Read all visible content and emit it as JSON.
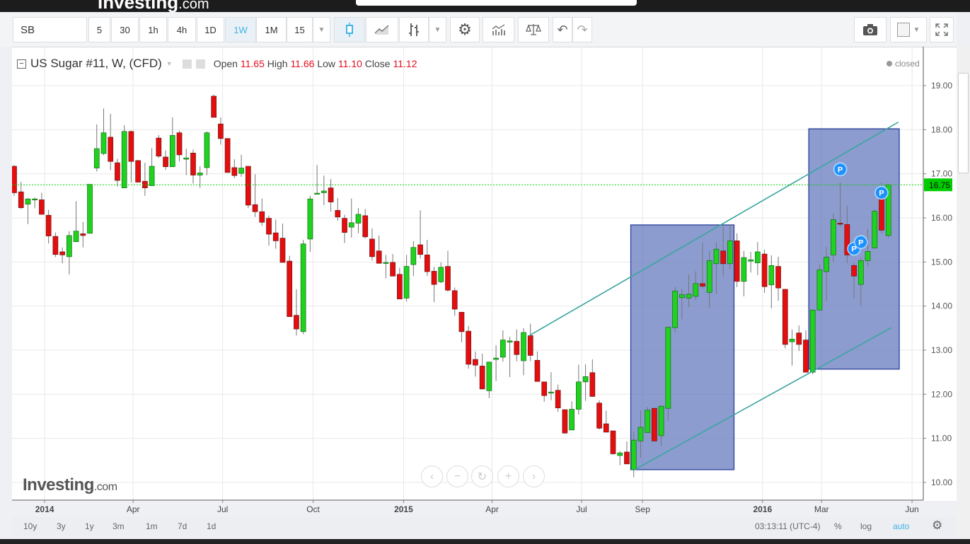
{
  "site": {
    "logo": "Investing",
    "logo_suffix": ".com"
  },
  "toolbar": {
    "symbol": "SB",
    "intervals": [
      "5",
      "30",
      "1h",
      "4h",
      "1D",
      "1W",
      "1M",
      "15"
    ],
    "active_interval": "1W",
    "icons": [
      "chevron-down-icon",
      "candlestick-icon",
      "line-chart-icon",
      "bar-chart-icon",
      "chevron-down-icon",
      "gear-icon",
      "indicators-icon",
      "compare-scale-icon",
      "undo-icon",
      "redo-icon",
      "camera-icon",
      "color-square-icon",
      "fullscreen-icon"
    ]
  },
  "legend": {
    "title": "US Sugar #11, W, (CFD)",
    "open_label": "Open",
    "open": "11.65",
    "high_label": "High",
    "high": "11.66",
    "low_label": "Low",
    "low": "11.10",
    "close_label": "Close",
    "close": "11.12",
    "status": "closed"
  },
  "watermark": {
    "brand": "Investing",
    "suffix": ".com"
  },
  "nav_buttons": [
    "‹",
    "−",
    "↻",
    "+",
    "›"
  ],
  "bottom_bar": {
    "ranges": [
      "10y",
      "3y",
      "1y",
      "3m",
      "1m",
      "7d",
      "1d"
    ],
    "time": "03:13:11 (UTC-4)",
    "percent": "%",
    "log": "log",
    "auto": "auto"
  },
  "colors": {
    "up": "#1ed21e",
    "down": "#e50d0d",
    "accent": "#3fb5e6",
    "price_line": "#00cc00",
    "box_fill": "#6c80c2",
    "trend_line": "#3aa5a0",
    "marker": "#1e90ff"
  },
  "chart_data": {
    "type": "candlestick",
    "title": "US Sugar #11, W, (CFD)",
    "interval": "weekly",
    "columns": [
      "date",
      "open",
      "high",
      "low",
      "close"
    ],
    "ylim": [
      9.8,
      19.7
    ],
    "y_ticks": [
      "10.00",
      "11.00",
      "12.00",
      "13.00",
      "14.00",
      "15.00",
      "16.00",
      "17.00",
      "18.00",
      "19.00"
    ],
    "x_ticks": [
      {
        "label": "2014",
        "date": "2014-01-01"
      },
      {
        "label": "Apr",
        "date": "2014-04-01"
      },
      {
        "label": "Jul",
        "date": "2014-07-01"
      },
      {
        "label": "Oct",
        "date": "2014-10-01"
      },
      {
        "label": "2015",
        "date": "2015-01-01"
      },
      {
        "label": "Apr",
        "date": "2015-04-01"
      },
      {
        "label": "Jul",
        "date": "2015-07-01"
      },
      {
        "label": "Sep",
        "date": "2015-09-01"
      },
      {
        "label": "2016",
        "date": "2016-01-01"
      },
      {
        "label": "Mar",
        "date": "2016-03-01"
      },
      {
        "label": "Jun",
        "date": "2016-06-01"
      }
    ],
    "grid": true,
    "last_price": "16.75",
    "candles": [
      [
        "2013-12-01",
        17.17,
        17.2,
        16.5,
        16.57
      ],
      [
        "2013-12-08",
        16.59,
        16.82,
        16.2,
        16.23
      ],
      [
        "2013-12-15",
        16.31,
        16.45,
        15.86,
        16.43
      ],
      [
        "2013-12-22",
        16.43,
        16.46,
        16.22,
        16.43
      ],
      [
        "2013-12-29",
        16.41,
        16.57,
        16.08,
        16.08
      ],
      [
        "2014-01-05",
        16.06,
        16.18,
        15.42,
        15.59
      ],
      [
        "2014-01-12",
        15.58,
        15.67,
        15.11,
        15.17
      ],
      [
        "2014-01-19",
        15.23,
        15.33,
        14.97,
        15.16
      ],
      [
        "2014-01-26",
        15.12,
        15.7,
        14.72,
        15.6
      ],
      [
        "2014-02-02",
        15.46,
        16.38,
        15.46,
        15.7
      ],
      [
        "2014-02-09",
        15.64,
        15.91,
        15.33,
        15.6
      ],
      [
        "2014-02-16",
        15.65,
        16.76,
        15.65,
        16.76
      ],
      [
        "2014-02-23",
        17.13,
        18.12,
        17.05,
        17.57
      ],
      [
        "2014-03-02",
        17.46,
        18.48,
        17.42,
        17.93
      ],
      [
        "2014-03-09",
        17.83,
        18.36,
        17.08,
        17.28
      ],
      [
        "2014-03-16",
        17.25,
        17.34,
        16.71,
        16.85
      ],
      [
        "2014-03-23",
        16.68,
        18.1,
        16.68,
        17.96
      ],
      [
        "2014-03-30",
        17.96,
        17.98,
        16.8,
        17.28
      ],
      [
        "2014-04-06",
        17.3,
        17.31,
        16.81,
        16.81
      ],
      [
        "2014-04-13",
        16.83,
        17.25,
        16.5,
        16.68
      ],
      [
        "2014-04-20",
        16.73,
        17.58,
        16.73,
        17.17
      ],
      [
        "2014-04-27",
        17.81,
        17.88,
        17.36,
        17.4
      ],
      [
        "2014-05-04",
        17.38,
        17.53,
        17.09,
        17.16
      ],
      [
        "2014-05-11",
        17.16,
        18.28,
        17.16,
        17.87
      ],
      [
        "2014-05-18",
        17.93,
        17.98,
        17.28,
        17.43
      ],
      [
        "2014-05-25",
        17.33,
        17.57,
        16.97,
        17.36
      ],
      [
        "2014-06-01",
        17.47,
        17.55,
        16.78,
        16.97
      ],
      [
        "2014-06-08",
        16.97,
        17.17,
        16.68,
        17.02
      ],
      [
        "2014-06-15",
        17.14,
        17.96,
        16.97,
        17.93
      ],
      [
        "2014-06-22",
        18.76,
        18.8,
        18.28,
        18.28
      ],
      [
        "2014-06-29",
        18.13,
        18.28,
        17.66,
        17.8
      ],
      [
        "2014-07-06",
        17.8,
        17.8,
        17.03,
        17.03
      ],
      [
        "2014-07-13",
        17.14,
        17.33,
        16.9,
        16.96
      ],
      [
        "2014-07-20",
        17.01,
        17.43,
        16.93,
        17.13
      ],
      [
        "2014-07-27",
        17.17,
        17.17,
        16.22,
        16.29
      ],
      [
        "2014-08-03",
        16.3,
        16.99,
        16.02,
        16.14
      ],
      [
        "2014-08-10",
        16.14,
        16.44,
        15.82,
        15.9
      ],
      [
        "2014-08-17",
        15.99,
        16.05,
        15.37,
        15.63
      ],
      [
        "2014-08-24",
        15.66,
        15.96,
        15.3,
        15.48
      ],
      [
        "2014-08-31",
        15.54,
        15.87,
        14.99,
        14.99
      ],
      [
        "2014-09-07",
        15.02,
        15.14,
        13.76,
        13.76
      ],
      [
        "2014-09-14",
        13.79,
        14.38,
        13.33,
        13.48
      ],
      [
        "2014-09-21",
        13.42,
        15.5,
        13.36,
        15.41
      ],
      [
        "2014-09-28",
        15.52,
        16.5,
        15.23,
        16.43
      ],
      [
        "2014-10-05",
        16.55,
        17.2,
        16.53,
        16.56
      ],
      [
        "2014-10-12",
        16.57,
        16.96,
        16.29,
        16.61
      ],
      [
        "2014-10-19",
        16.68,
        16.88,
        16.14,
        16.36
      ],
      [
        "2014-10-26",
        16.17,
        16.45,
        15.94,
        16.02
      ],
      [
        "2014-11-02",
        15.99,
        16.07,
        15.43,
        15.67
      ],
      [
        "2014-11-09",
        15.79,
        16.44,
        15.55,
        15.89
      ],
      [
        "2014-11-16",
        15.88,
        16.22,
        15.65,
        16.08
      ],
      [
        "2014-11-23",
        16.05,
        16.2,
        15.53,
        15.57
      ],
      [
        "2014-11-30",
        15.52,
        15.76,
        15.03,
        15.12
      ],
      [
        "2014-12-07",
        15.25,
        15.6,
        14.97,
        14.97
      ],
      [
        "2014-12-14",
        14.99,
        15.16,
        14.63,
        14.99
      ],
      [
        "2014-12-21",
        14.99,
        15.18,
        14.68,
        14.68
      ],
      [
        "2014-12-28",
        14.72,
        14.87,
        14.16,
        14.16
      ],
      [
        "2015-01-04",
        14.18,
        15.16,
        14.1,
        14.9
      ],
      [
        "2015-01-11",
        14.94,
        15.47,
        14.68,
        15.33
      ],
      [
        "2015-01-18",
        15.39,
        16.17,
        15.08,
        15.17
      ],
      [
        "2015-01-25",
        15.16,
        15.5,
        14.68,
        14.78
      ],
      [
        "2015-02-01",
        14.79,
        14.89,
        14.09,
        14.49
      ],
      [
        "2015-02-08",
        14.55,
        14.99,
        14.52,
        14.88
      ],
      [
        "2015-02-15",
        14.9,
        15.25,
        14.33,
        14.36
      ],
      [
        "2015-02-22",
        14.35,
        14.42,
        13.78,
        13.93
      ],
      [
        "2015-03-01",
        13.86,
        13.86,
        13.18,
        13.42
      ],
      [
        "2015-03-08",
        13.43,
        13.55,
        12.58,
        12.68
      ],
      [
        "2015-03-15",
        12.79,
        12.97,
        12.4,
        12.66
      ],
      [
        "2015-03-22",
        12.64,
        12.92,
        12.11,
        12.12
      ],
      [
        "2015-03-29",
        12.08,
        12.73,
        11.91,
        12.73
      ],
      [
        "2015-04-05",
        12.79,
        13.11,
        12.3,
        12.82
      ],
      [
        "2015-04-12",
        12.84,
        13.45,
        12.74,
        13.23
      ],
      [
        "2015-04-19",
        13.18,
        13.3,
        12.39,
        13.21
      ],
      [
        "2015-04-26",
        13.2,
        13.47,
        12.75,
        12.9
      ],
      [
        "2015-05-03",
        12.76,
        13.5,
        12.43,
        13.4
      ],
      [
        "2015-05-10",
        13.33,
        13.6,
        12.75,
        12.88
      ],
      [
        "2015-05-17",
        12.77,
        12.97,
        12.29,
        12.29
      ],
      [
        "2015-05-24",
        12.28,
        12.28,
        11.83,
        11.97
      ],
      [
        "2015-05-31",
        12.05,
        12.5,
        11.86,
        12.05
      ],
      [
        "2015-06-07",
        12.09,
        12.22,
        11.6,
        11.69
      ],
      [
        "2015-06-14",
        11.65,
        11.66,
        11.1,
        11.12
      ],
      [
        "2015-06-21",
        11.19,
        11.84,
        11.19,
        11.66
      ],
      [
        "2015-06-28",
        11.66,
        12.67,
        11.54,
        12.28
      ],
      [
        "2015-07-05",
        12.28,
        12.68,
        11.85,
        12.4
      ],
      [
        "2015-07-12",
        12.49,
        12.79,
        11.94,
        11.95
      ],
      [
        "2015-07-19",
        11.8,
        11.86,
        11.2,
        11.23
      ],
      [
        "2015-07-26",
        11.33,
        11.63,
        11.14,
        11.14
      ],
      [
        "2015-08-02",
        11.17,
        11.17,
        10.63,
        10.65
      ],
      [
        "2015-08-09",
        10.61,
        10.71,
        10.39,
        10.67
      ],
      [
        "2015-08-16",
        10.69,
        10.93,
        10.42,
        10.42
      ],
      [
        "2015-08-23",
        10.29,
        11.15,
        10.12,
        10.96
      ],
      [
        "2015-08-30",
        10.94,
        11.64,
        10.56,
        11.25
      ],
      [
        "2015-09-06",
        11.13,
        11.71,
        11.13,
        11.64
      ],
      [
        "2015-09-13",
        11.68,
        11.7,
        10.94,
        10.94
      ],
      [
        "2015-09-20",
        11.06,
        11.73,
        10.83,
        11.73
      ],
      [
        "2015-09-27",
        11.68,
        13.52,
        11.4,
        13.52
      ],
      [
        "2015-10-04",
        13.51,
        14.43,
        13.4,
        14.34
      ],
      [
        "2015-10-11",
        14.19,
        14.39,
        13.7,
        14.26
      ],
      [
        "2015-10-18",
        14.18,
        14.72,
        13.97,
        14.27
      ],
      [
        "2015-10-25",
        14.22,
        14.79,
        14.13,
        14.51
      ],
      [
        "2015-11-01",
        14.51,
        15.44,
        14.41,
        14.45
      ],
      [
        "2015-11-08",
        14.31,
        15.25,
        13.95,
        15.03
      ],
      [
        "2015-11-15",
        14.96,
        15.45,
        14.27,
        15.29
      ],
      [
        "2015-11-22",
        15.25,
        15.8,
        14.67,
        14.96
      ],
      [
        "2015-11-29",
        14.96,
        15.85,
        14.84,
        15.48
      ],
      [
        "2015-12-06",
        15.48,
        15.65,
        14.43,
        14.56
      ],
      [
        "2015-12-13",
        14.56,
        15.25,
        14.22,
        15.1
      ],
      [
        "2015-12-20",
        15.02,
        15.23,
        14.76,
        15.05
      ],
      [
        "2015-12-27",
        14.98,
        15.45,
        14.7,
        15.23
      ],
      [
        "2016-01-03",
        15.18,
        15.28,
        14.3,
        14.44
      ],
      [
        "2016-01-10",
        14.48,
        15.15,
        13.95,
        14.92
      ],
      [
        "2016-01-17",
        14.9,
        15.12,
        14.12,
        14.41
      ],
      [
        "2016-01-24",
        14.38,
        14.38,
        13.04,
        13.13
      ],
      [
        "2016-01-31",
        13.19,
        13.47,
        12.65,
        13.25
      ],
      [
        "2016-02-07",
        13.39,
        13.56,
        12.98,
        13.13
      ],
      [
        "2016-02-14",
        13.23,
        13.45,
        12.5,
        12.5
      ],
      [
        "2016-02-21",
        12.5,
        13.91,
        12.45,
        13.91
      ],
      [
        "2016-02-28",
        13.91,
        14.95,
        13.91,
        14.82
      ],
      [
        "2016-03-06",
        14.78,
        15.34,
        14.11,
        15.11
      ],
      [
        "2016-03-13",
        15.16,
        16.1,
        15.0,
        15.96
      ],
      [
        "2016-03-20",
        15.88,
        16.8,
        15.8,
        15.86
      ],
      [
        "2016-03-27",
        15.85,
        16.27,
        14.97,
        15.16
      ],
      [
        "2016-04-03",
        14.92,
        14.98,
        14.18,
        14.68
      ],
      [
        "2016-04-10",
        14.49,
        15.1,
        14.0,
        15.03
      ],
      [
        "2016-04-17",
        15.03,
        15.75,
        14.9,
        15.24
      ],
      [
        "2016-04-24",
        15.32,
        16.2,
        15.3,
        16.15
      ],
      [
        "2016-05-01",
        16.44,
        16.8,
        15.65,
        15.72
      ],
      [
        "2016-05-08",
        15.6,
        16.75,
        15.55,
        16.75
      ]
    ],
    "drawings": {
      "rectangles": [
        {
          "from": "2015-08-20",
          "to": "2015-12-03",
          "low": 10.29,
          "high": 15.84
        },
        {
          "from": "2016-02-17",
          "to": "2016-05-19",
          "low": 12.57,
          "high": 18.02
        }
      ],
      "trend_lines": [
        {
          "from": [
            "2015-05-08",
            13.32
          ],
          "to": [
            "2016-05-18",
            18.17
          ]
        },
        {
          "from": [
            "2015-08-24",
            10.29
          ],
          "to": [
            "2016-05-11",
            13.51
          ]
        }
      ]
    },
    "markers": [
      {
        "date": "2016-03-20",
        "price": 17.1,
        "label": "P"
      },
      {
        "date": "2016-04-03",
        "price": 15.3,
        "label": "P"
      },
      {
        "date": "2016-04-10",
        "price": 15.45,
        "label": "P"
      },
      {
        "date": "2016-05-01",
        "price": 16.57,
        "label": "P"
      }
    ]
  }
}
